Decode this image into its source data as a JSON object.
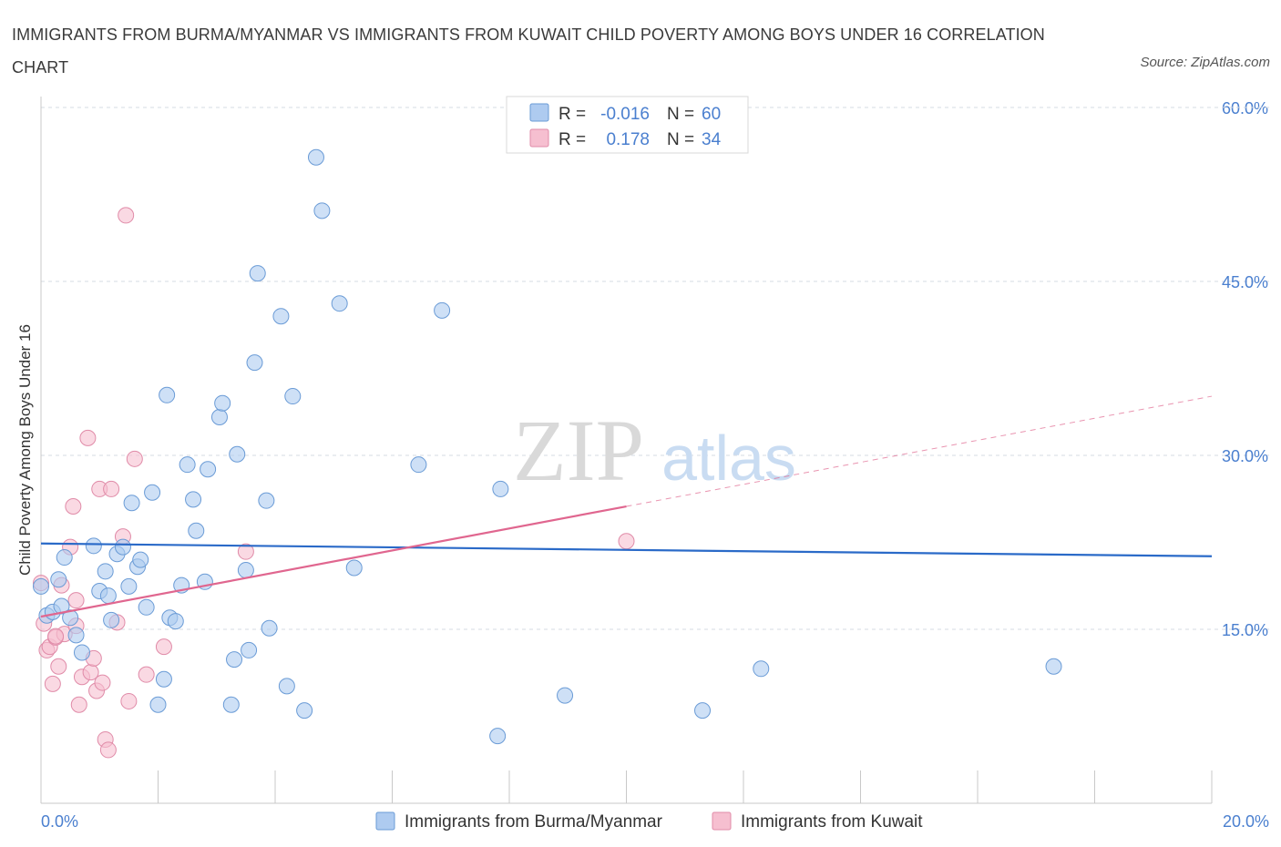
{
  "title": "IMMIGRANTS FROM BURMA/MYANMAR VS IMMIGRANTS FROM KUWAIT CHILD POVERTY AMONG BOYS UNDER 16 CORRELATION CHART",
  "source": "Source: ZipAtlas.com",
  "watermark": {
    "zip": "ZIP",
    "atlas": "atlas"
  },
  "colors": {
    "series1_fill": "#aecbf0",
    "series1_stroke": "#6a9bd6",
    "series1_line": "#2a6ac8",
    "series2_fill": "#f6bfd0",
    "series2_stroke": "#e08ba8",
    "series2_line": "#e0668f",
    "tick_text": "#4a7fcf",
    "grid": "#d6dbe3"
  },
  "legend": {
    "rows": [
      {
        "r_label": "R =",
        "r_value": "-0.016",
        "n_label": "N =",
        "n_value": "60"
      },
      {
        "r_label": "R =",
        "r_value": "0.178",
        "n_label": "N =",
        "n_value": "34"
      }
    ]
  },
  "bottom_legend": [
    "Immigrants from Burma/Myanmar",
    "Immigrants from Kuwait"
  ],
  "chart_data": {
    "type": "scatter",
    "title": "IMMIGRANTS FROM BURMA/MYANMAR VS IMMIGRANTS FROM KUWAIT CHILD POVERTY AMONG BOYS UNDER 16 CORRELATION CHART",
    "xlabel": "",
    "ylabel": "Child Poverty Among Boys Under 16",
    "xlim": [
      0,
      20
    ],
    "ylim": [
      0,
      60
    ],
    "x_tick_labels": [
      "0.0%",
      "20.0%"
    ],
    "y_tick_labels": [
      "15.0%",
      "30.0%",
      "45.0%",
      "60.0%"
    ],
    "y_ticks": [
      15,
      30,
      45,
      60
    ],
    "grid": true,
    "legend_position": "top-center",
    "series": [
      {
        "name": "Immigrants from Burma/Myanmar",
        "trend": {
          "x": [
            0,
            20
          ],
          "y": [
            22.4,
            21.3
          ]
        },
        "points": [
          [
            0.0,
            18.7
          ],
          [
            0.1,
            16.2
          ],
          [
            0.2,
            16.5
          ],
          [
            0.3,
            19.3
          ],
          [
            0.35,
            17.0
          ],
          [
            0.4,
            21.2
          ],
          [
            0.5,
            16.0
          ],
          [
            0.6,
            14.5
          ],
          [
            0.7,
            13.0
          ],
          [
            0.9,
            22.2
          ],
          [
            1.0,
            18.3
          ],
          [
            1.1,
            20.0
          ],
          [
            1.15,
            17.9
          ],
          [
            1.2,
            15.8
          ],
          [
            1.3,
            21.5
          ],
          [
            1.4,
            22.1
          ],
          [
            1.5,
            18.7
          ],
          [
            1.55,
            25.9
          ],
          [
            1.65,
            20.4
          ],
          [
            1.7,
            21.0
          ],
          [
            1.8,
            16.9
          ],
          [
            1.9,
            26.8
          ],
          [
            2.0,
            8.5
          ],
          [
            2.1,
            10.7
          ],
          [
            2.15,
            35.2
          ],
          [
            2.2,
            16.0
          ],
          [
            2.3,
            15.7
          ],
          [
            2.4,
            18.8
          ],
          [
            2.5,
            29.2
          ],
          [
            2.6,
            26.2
          ],
          [
            2.65,
            23.5
          ],
          [
            2.8,
            19.1
          ],
          [
            2.85,
            28.8
          ],
          [
            3.05,
            33.3
          ],
          [
            3.1,
            34.5
          ],
          [
            3.25,
            8.5
          ],
          [
            3.3,
            12.4
          ],
          [
            3.35,
            30.1
          ],
          [
            3.5,
            20.1
          ],
          [
            3.55,
            13.2
          ],
          [
            3.65,
            38.0
          ],
          [
            3.7,
            45.7
          ],
          [
            3.85,
            26.1
          ],
          [
            3.9,
            15.1
          ],
          [
            4.1,
            42.0
          ],
          [
            4.2,
            10.1
          ],
          [
            4.3,
            35.1
          ],
          [
            4.5,
            8.0
          ],
          [
            4.7,
            55.7
          ],
          [
            4.8,
            51.1
          ],
          [
            5.1,
            43.1
          ],
          [
            5.35,
            20.3
          ],
          [
            6.45,
            29.2
          ],
          [
            6.85,
            42.5
          ],
          [
            7.8,
            5.8
          ],
          [
            7.85,
            27.1
          ],
          [
            8.95,
            9.3
          ],
          [
            11.3,
            8.0
          ],
          [
            12.3,
            11.6
          ],
          [
            17.3,
            11.8
          ]
        ]
      },
      {
        "name": "Immigrants from Kuwait",
        "trend": {
          "x": [
            0,
            10.0
          ],
          "y": [
            16.1,
            25.6
          ],
          "dashed_to": {
            "x": 20,
            "y": 35.1
          }
        },
        "points": [
          [
            0.0,
            19.0
          ],
          [
            0.05,
            15.5
          ],
          [
            0.1,
            13.2
          ],
          [
            0.15,
            13.5
          ],
          [
            0.2,
            10.3
          ],
          [
            0.25,
            14.3
          ],
          [
            0.3,
            11.8
          ],
          [
            0.35,
            18.8
          ],
          [
            0.4,
            14.6
          ],
          [
            0.5,
            22.1
          ],
          [
            0.55,
            25.6
          ],
          [
            0.6,
            17.5
          ],
          [
            0.65,
            8.5
          ],
          [
            0.7,
            10.9
          ],
          [
            0.8,
            31.5
          ],
          [
            0.85,
            11.3
          ],
          [
            0.9,
            12.5
          ],
          [
            0.95,
            9.7
          ],
          [
            1.0,
            27.1
          ],
          [
            1.05,
            10.4
          ],
          [
            1.1,
            5.5
          ],
          [
            1.15,
            4.6
          ],
          [
            1.2,
            27.1
          ],
          [
            1.3,
            15.6
          ],
          [
            1.4,
            23.0
          ],
          [
            1.45,
            50.7
          ],
          [
            1.5,
            8.8
          ],
          [
            1.6,
            29.7
          ],
          [
            1.8,
            11.1
          ],
          [
            2.1,
            13.5
          ],
          [
            3.5,
            21.7
          ],
          [
            10.0,
            22.6
          ],
          [
            0.25,
            14.4
          ],
          [
            0.6,
            15.3
          ]
        ]
      }
    ]
  }
}
